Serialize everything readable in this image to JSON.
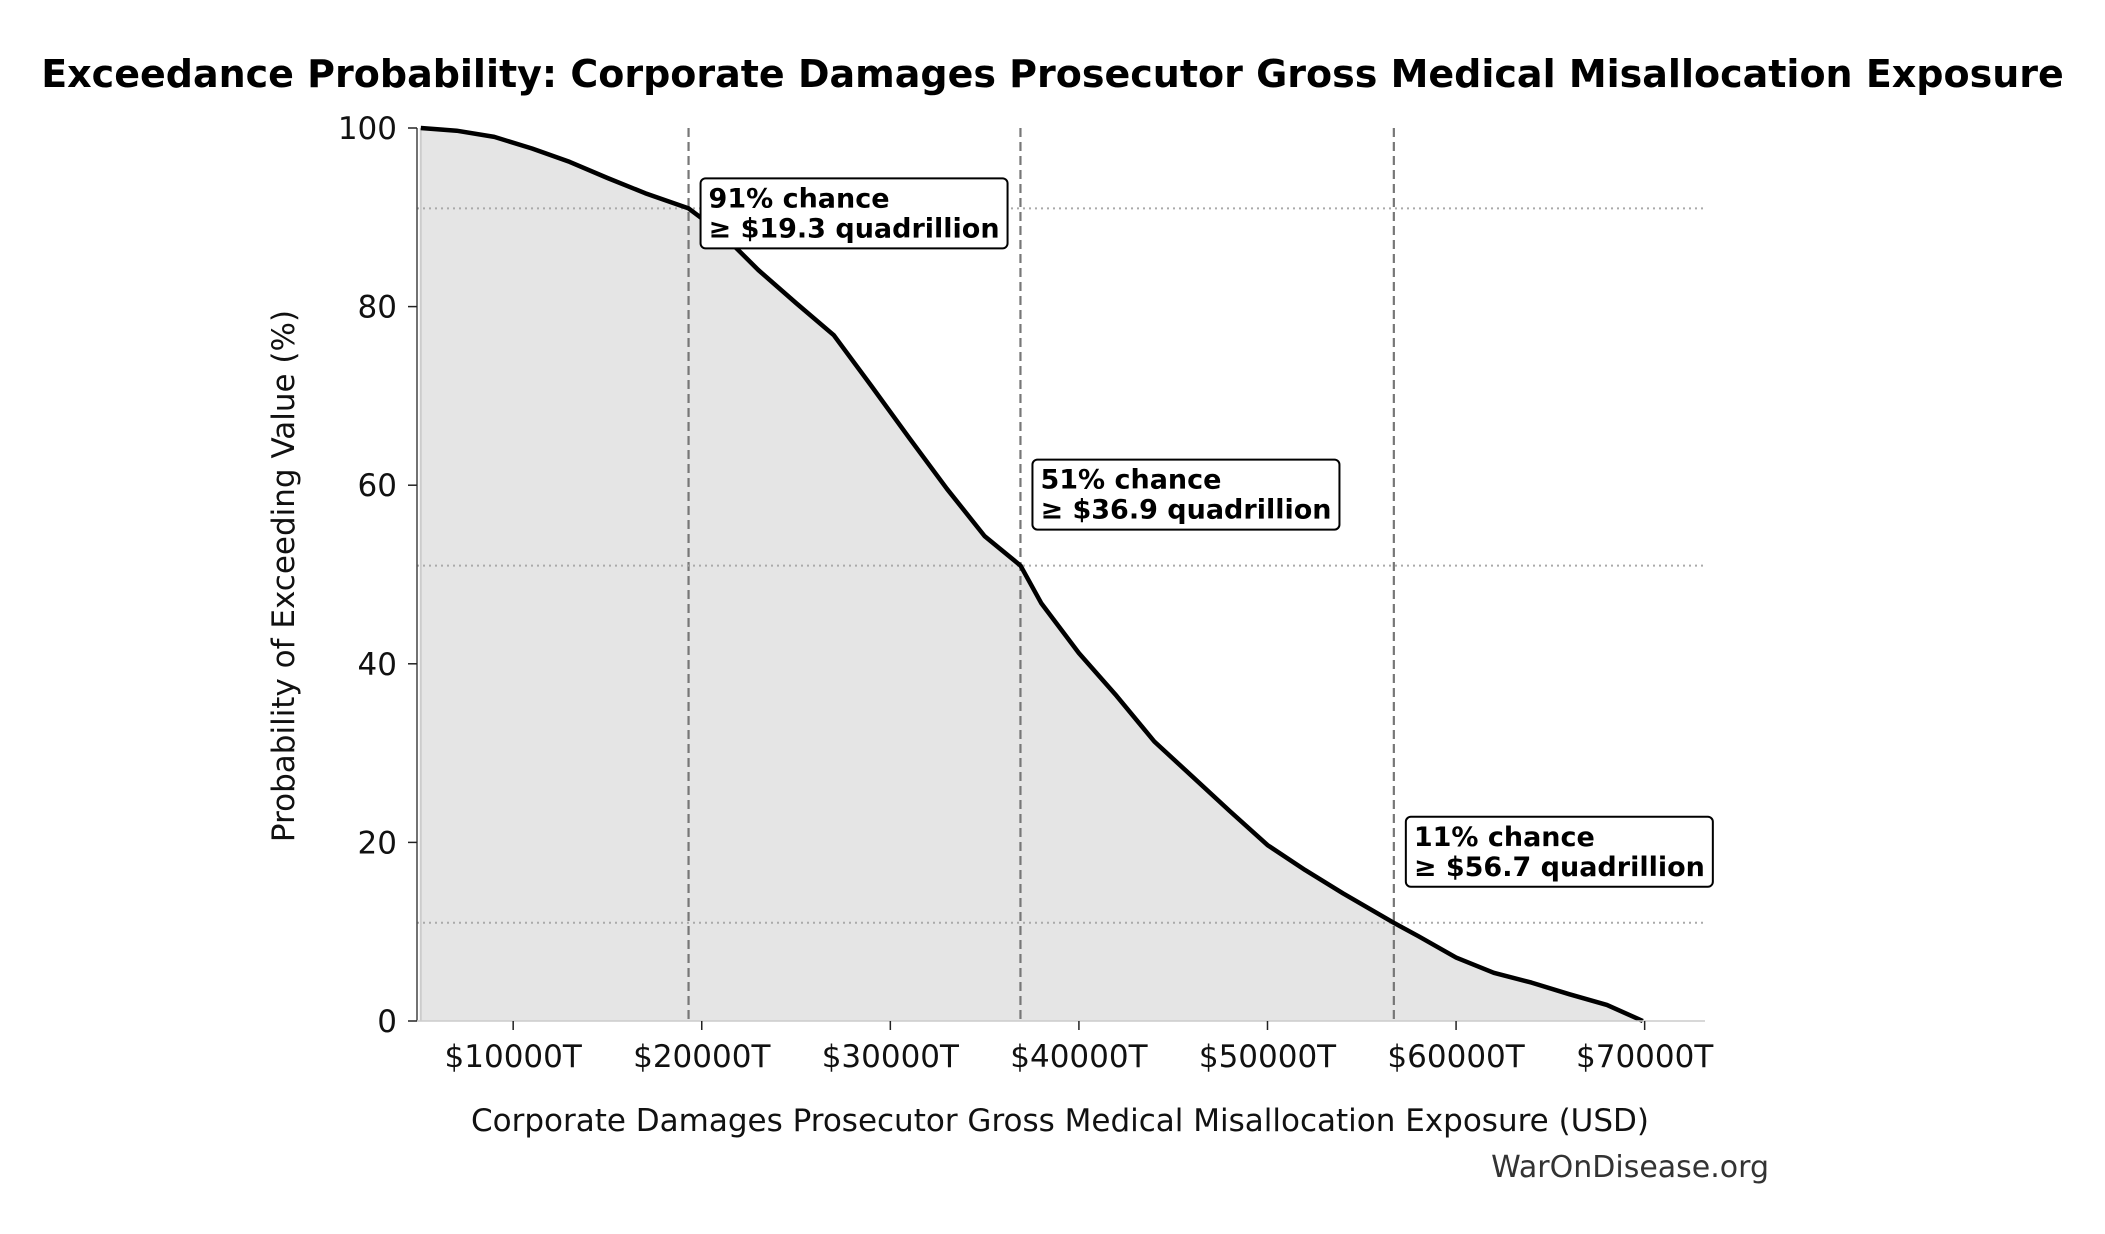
{
  "chart_data": {
    "type": "area",
    "title": "Exceedance Probability: Corporate Damages Prosecutor Gross Medical Misallocation Exposure",
    "xlabel": "Corporate Damages Prosecutor Gross Medical Misallocation Exposure (USD)",
    "ylabel": "Probability of Exceeding Value (%)",
    "xlim": [
      4900,
      73200
    ],
    "ylim": [
      0,
      100
    ],
    "x_ticks": [
      10000,
      20000,
      30000,
      40000,
      50000,
      60000,
      70000
    ],
    "x_tick_labels": [
      "$10000T",
      "$20000T",
      "$30000T",
      "$40000T",
      "$50000T",
      "$60000T",
      "$70000T"
    ],
    "y_ticks": [
      0,
      20,
      40,
      60,
      80,
      100
    ],
    "y_tick_labels": [
      "0",
      "20",
      "40",
      "60",
      "80",
      "100"
    ],
    "series": [
      {
        "x": [
          5100,
          7000,
          9000,
          11000,
          13000,
          15000,
          17000,
          19300,
          21000,
          23000,
          25000,
          27000,
          29000,
          31000,
          33000,
          35000,
          36900,
          38000,
          40000,
          42000,
          44000,
          46000,
          48000,
          50000,
          52000,
          54000,
          56700,
          58000,
          60000,
          62000,
          64000,
          66000,
          68000,
          69900
        ],
        "y": [
          100,
          99.7,
          99,
          97.7,
          96.2,
          94.4,
          92.7,
          91,
          88.3,
          84.1,
          80.4,
          76.8,
          71.1,
          65.3,
          59.6,
          54.3,
          51,
          46.8,
          41.2,
          36.4,
          31.3,
          27.4,
          23.5,
          19.7,
          16.9,
          14.3,
          11,
          9.5,
          7.1,
          5.4,
          4.3,
          3,
          1.8,
          0
        ]
      }
    ],
    "percentiles": [
      {
        "x": 19300,
        "y": 91
      },
      {
        "x": 36900,
        "y": 51
      },
      {
        "x": 56700,
        "y": 11
      }
    ],
    "annotations": [
      {
        "line1": "91% chance",
        "line2": "≥ $19.3 quadrillion"
      },
      {
        "line1": "51% chance",
        "line2": "≥ $36.9 quadrillion"
      },
      {
        "line1": "11% chance",
        "line2": "≥ $56.7 quadrillion"
      }
    ],
    "grid": false,
    "colors": {
      "line": "#000000",
      "fill": "#e5e5e5",
      "reference": "#777777",
      "dotted": "#aaaaaa"
    }
  },
  "watermark": "WarOnDisease.org"
}
